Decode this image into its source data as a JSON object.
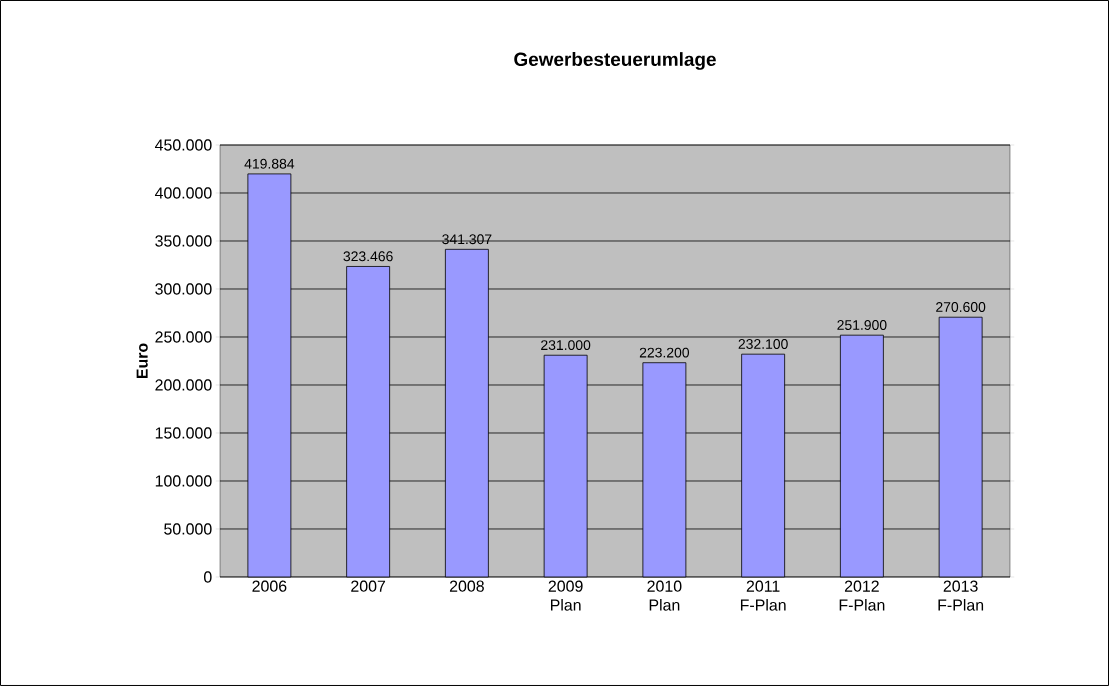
{
  "chart_data": {
    "type": "bar",
    "title": "Gewerbesteuerumlage",
    "ylabel": "Euro",
    "categories": [
      "2006",
      "2007",
      "2008",
      "2009 Plan",
      "2010 Plan",
      "2011 F-Plan",
      "2012 F-Plan",
      "2013 F-Plan"
    ],
    "values": [
      419884,
      323466,
      341307,
      231000,
      223200,
      232100,
      251900,
      270600
    ],
    "value_labels": [
      "419.884",
      "323.466",
      "341.307",
      "231.000",
      "223.200",
      "232.100",
      "251.900",
      "270.600"
    ],
    "color": "#9999ff",
    "ylim": [
      0,
      450000
    ],
    "yticks": [
      0,
      {
        "value": 50000,
        "label": "50.000"
      },
      {
        "value": 100000,
        "label": "100.000"
      },
      {
        "value": 150000,
        "label": "150.000"
      },
      {
        "value": 200000,
        "label": "200.000"
      },
      {
        "value": 250000,
        "label": "250.000"
      },
      {
        "value": 300000,
        "label": "300.000"
      },
      {
        "value": 350000,
        "label": "350.000"
      },
      {
        "value": 400000,
        "label": "400.000"
      },
      {
        "value": 450000,
        "label": "450.000"
      }
    ],
    "grid": "y"
  }
}
